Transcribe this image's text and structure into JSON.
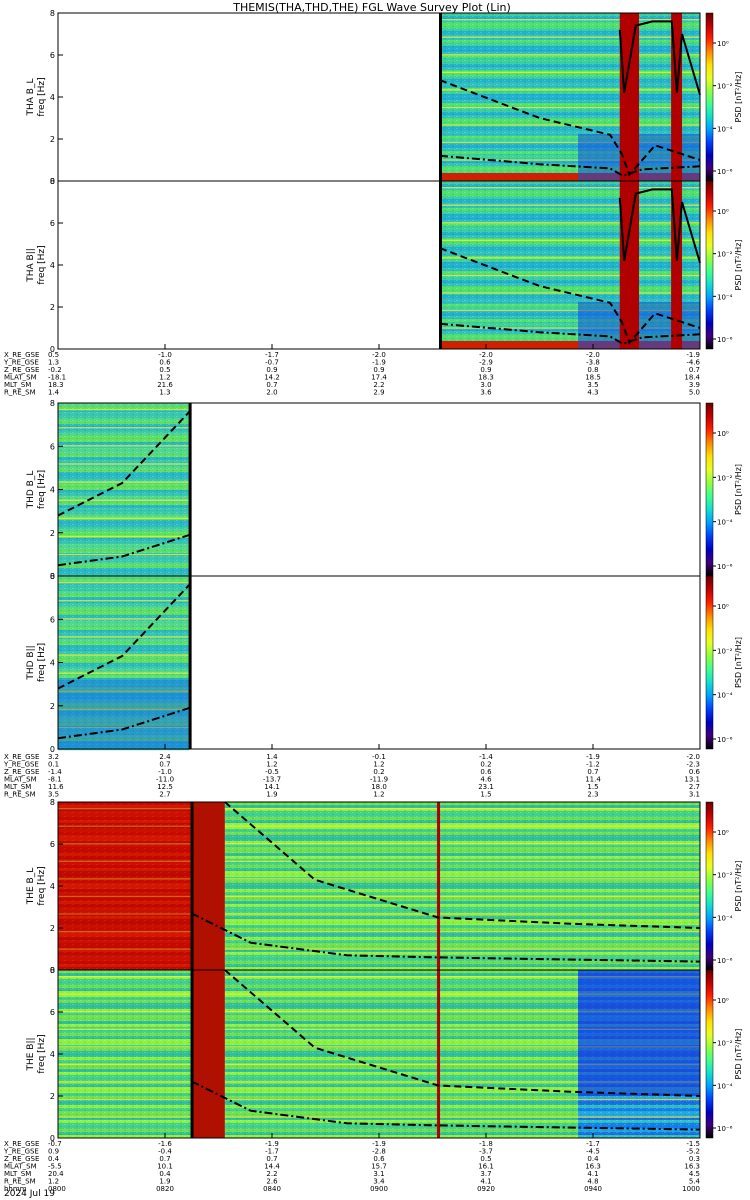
{
  "title": "THEMIS(THA,THD,THE) FGL Wave Survey Plot (Lin)",
  "date_label": "2024 Jul 19",
  "colorbar": {
    "label": "PSD [nT²/Hz]",
    "tick_labels": [
      "10⁰",
      "10⁻²",
      "10⁻⁴",
      "10⁻⁶"
    ],
    "colors": [
      "#6a0000",
      "#c00000",
      "#ff2000",
      "#ff8a00",
      "#ffe000",
      "#e8ff20",
      "#90ff40",
      "#40ff90",
      "#10e0d0",
      "#00a0ff",
      "#0040ff",
      "#0000c0",
      "#40007a",
      "#000000"
    ]
  },
  "chart_data": [
    {
      "type": "heatmap",
      "probe": "THA",
      "panels": [
        {
          "ylabel": "THA B_L",
          "unit_label": "freq [Hz]",
          "ylim": [
            0,
            8
          ],
          "yticks": [
            "0",
            "2",
            "4",
            "6",
            "8"
          ]
        },
        {
          "ylabel": "THA B||",
          "unit_label": "freq [Hz]",
          "ylim": [
            0,
            8
          ],
          "yticks": [
            "0",
            "2",
            "4",
            "6",
            "8"
          ]
        }
      ],
      "xlim": [
        0,
        100
      ],
      "data_start": 59.5,
      "high_psd_bands": [
        [
          87.5,
          90.5
        ],
        [
          95.5,
          97.2
        ]
      ],
      "curves": {
        "solid": [
          [
            87.5,
            7.2
          ],
          [
            88.2,
            4.2
          ],
          [
            90.0,
            7.4
          ],
          [
            92.6,
            7.6
          ],
          [
            95.6,
            7.6
          ],
          [
            96.4,
            4.2
          ],
          [
            97.2,
            7.0
          ],
          [
            100,
            4.1
          ]
        ],
        "dashed": [
          [
            59.5,
            4.8
          ],
          [
            75,
            3.0
          ],
          [
            86,
            2.2
          ],
          [
            87.8,
            1.3
          ],
          [
            89,
            0.3
          ],
          [
            93,
            1.7
          ],
          [
            100,
            1.0
          ]
        ],
        "dash_dot": [
          [
            59.5,
            1.2
          ],
          [
            75,
            0.8
          ],
          [
            86,
            0.6
          ],
          [
            88,
            0.25
          ],
          [
            91,
            0.55
          ],
          [
            100,
            0.7
          ]
        ]
      },
      "ephemeris": {
        "rows": [
          {
            "label": "X_RE_GSE",
            "values": [
              "0.5",
              "-1.0",
              "-1.7",
              "-2.0",
              "-2.0",
              "-2.0",
              "-1.9"
            ]
          },
          {
            "label": "Y_RE_GSE",
            "values": [
              "1.3",
              "0.6",
              "-0.7",
              "-1.9",
              "-2.9",
              "-3.8",
              "-4.6"
            ]
          },
          {
            "label": "Z_RE_GSE",
            "values": [
              "-0.2",
              "0.5",
              "0.9",
              "0.9",
              "0.9",
              "0.8",
              "0.7"
            ]
          },
          {
            "label": "MLAT_SM",
            "values": [
              "-18.1",
              "1.2",
              "14.2",
              "17.4",
              "18.3",
              "18.5",
              "18.4"
            ]
          },
          {
            "label": "MLT_SM",
            "values": [
              "18.3",
              "21.6",
              "0.7",
              "2.2",
              "3.0",
              "3.5",
              "3.9"
            ]
          },
          {
            "label": "R_RE_SM",
            "values": [
              "1.4",
              "1.3",
              "2.0",
              "2.9",
              "3.6",
              "4.3",
              "5.0"
            ]
          }
        ]
      }
    },
    {
      "type": "heatmap",
      "probe": "THD",
      "panels": [
        {
          "ylabel": "THD B_L",
          "unit_label": "freq [Hz]",
          "ylim": [
            0,
            8
          ],
          "yticks": [
            "0",
            "2",
            "4",
            "6",
            "8"
          ]
        },
        {
          "ylabel": "THD B||",
          "unit_label": "freq [Hz]",
          "ylim": [
            0,
            8
          ],
          "yticks": [
            "0",
            "2",
            "4",
            "6",
            "8"
          ]
        }
      ],
      "xlim": [
        0,
        100
      ],
      "data_end": 20.5,
      "curves": {
        "dashed": [
          [
            0,
            2.8
          ],
          [
            10,
            4.3
          ],
          [
            20.5,
            7.6
          ]
        ],
        "dash_dot": [
          [
            0,
            0.5
          ],
          [
            10,
            0.9
          ],
          [
            20.5,
            1.9
          ]
        ]
      },
      "ephemeris": {
        "rows": [
          {
            "label": "X_RE_GSE",
            "values": [
              "3.2",
              "2.4",
              "1.4",
              "-0.1",
              "-1.4",
              "-1.9",
              "-2.0"
            ]
          },
          {
            "label": "Y_RE_GSE",
            "values": [
              "0.1",
              "0.7",
              "1.2",
              "1.2",
              "0.2",
              "-1.2",
              "-2.3"
            ]
          },
          {
            "label": "Z_RE_GSE",
            "values": [
              "-1.4",
              "-1.0",
              "-0.5",
              "0.2",
              "0.6",
              "0.7",
              "0.6"
            ]
          },
          {
            "label": "MLAT_SM",
            "values": [
              "-8.1",
              "-11.0",
              "-13.7",
              "-11.9",
              "4.6",
              "11.4",
              "13.1"
            ]
          },
          {
            "label": "MLT_SM",
            "values": [
              "11.6",
              "12.5",
              "14.1",
              "18.0",
              "23.1",
              "1.5",
              "2.7"
            ]
          },
          {
            "label": "R_RE_SM",
            "values": [
              "3.5",
              "2.7",
              "1.9",
              "1.2",
              "1.5",
              "2.3",
              "3.1"
            ]
          }
        ]
      }
    },
    {
      "type": "heatmap",
      "probe": "THE",
      "panels": [
        {
          "ylabel": "THE B_L",
          "unit_label": "freq [Hz]",
          "ylim": [
            0,
            8
          ],
          "yticks": [
            "0",
            "2",
            "4",
            "6",
            "8"
          ]
        },
        {
          "ylabel": "THE B||",
          "unit_label": "freq [Hz]",
          "ylim": [
            0,
            8
          ],
          "yticks": [
            "0",
            "2",
            "4",
            "6",
            "8"
          ]
        }
      ],
      "xlim": [
        0,
        100
      ],
      "boundaries": [
        20.8,
        59.2,
        81.0
      ],
      "curves": {
        "dashed": [
          [
            26,
            8.0
          ],
          [
            40,
            4.3
          ],
          [
            59.2,
            2.5
          ],
          [
            80,
            2.2
          ],
          [
            100,
            2.0
          ]
        ],
        "dash_dot": [
          [
            20.8,
            2.7
          ],
          [
            30,
            1.3
          ],
          [
            45,
            0.7
          ],
          [
            59.2,
            0.6
          ],
          [
            100,
            0.4
          ]
        ]
      },
      "ephemeris": {
        "rows": [
          {
            "label": "X_RE_GSE",
            "values": [
              "-0.7",
              "-1.6",
              "-1.9",
              "-1.9",
              "-1.8",
              "-1.7",
              "-1.5"
            ]
          },
          {
            "label": "Y_RE_GSE",
            "values": [
              "0.9",
              "-0.4",
              "-1.7",
              "-2.8",
              "-3.7",
              "-4.5",
              "-5.2"
            ]
          },
          {
            "label": "Z_RE_GSE",
            "values": [
              "0.4",
              "0.7",
              "0.7",
              "0.6",
              "0.5",
              "0.4",
              "0.3"
            ]
          },
          {
            "label": "MLAT_SM",
            "values": [
              "-5.5",
              "10.1",
              "14.4",
              "15.7",
              "16.1",
              "16.3",
              "16.3"
            ]
          },
          {
            "label": "MLT_SM",
            "values": [
              "20.4",
              "0.4",
              "2.2",
              "3.1",
              "3.7",
              "4.1",
              "4.5"
            ]
          },
          {
            "label": "R_RE_SM",
            "values": [
              "1.2",
              "1.9",
              "2.6",
              "3.4",
              "4.1",
              "4.8",
              "5.4"
            ]
          },
          {
            "label": "hhmm",
            "values": [
              "0800",
              "0820",
              "0840",
              "0900",
              "0920",
              "0940",
              "1000"
            ]
          }
        ]
      }
    }
  ]
}
